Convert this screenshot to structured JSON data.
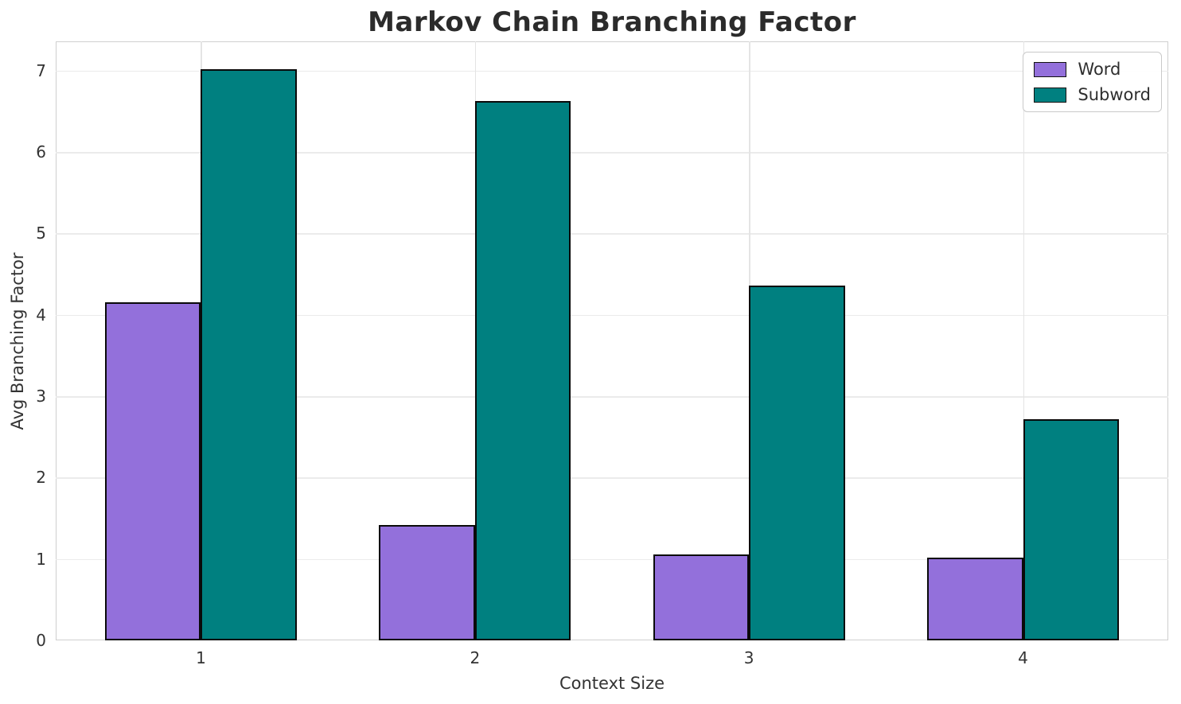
{
  "title": "Markov Chain Branching Factor",
  "chart_data": {
    "type": "bar",
    "title": "Markov Chain Branching Factor",
    "xlabel": "Context Size",
    "ylabel": "Avg Branching Factor",
    "categories": [
      "1",
      "2",
      "3",
      "4"
    ],
    "series": [
      {
        "name": "Word",
        "color": "#9370DB",
        "values": [
          4.15,
          1.42,
          1.06,
          1.02
        ]
      },
      {
        "name": "Subword",
        "color": "#008080",
        "values": [
          7.02,
          6.63,
          4.36,
          2.72
        ]
      }
    ],
    "bar_width": 0.35,
    "bar_edge_color": "#0a0a0a",
    "ylim": [
      0,
      7.36
    ],
    "xlim": [
      -0.53,
      3.53
    ],
    "yticks": [
      0,
      1,
      2,
      3,
      4,
      5,
      6,
      7
    ],
    "grid": true,
    "legend_position": "upper right"
  }
}
